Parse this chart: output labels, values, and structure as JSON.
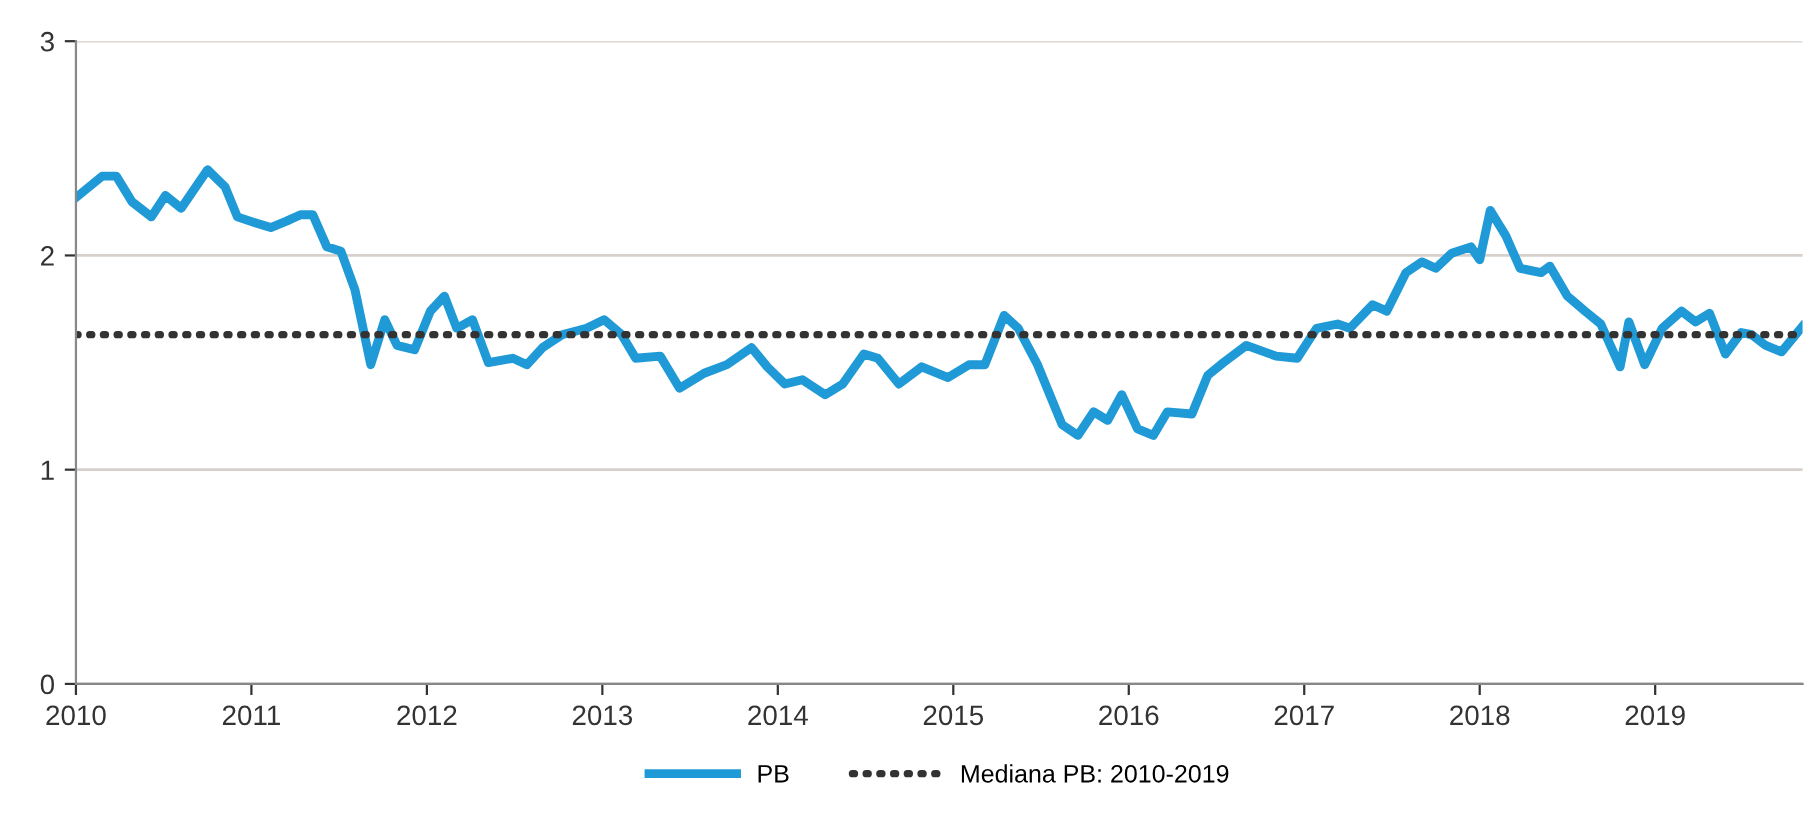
{
  "chart_data": {
    "type": "line",
    "xlim": [
      2010,
      2019.84
    ],
    "xticks": [
      2010,
      2011,
      2012,
      2013,
      2014,
      2015,
      2016,
      2017,
      2018,
      2019
    ],
    "ylim": [
      0,
      3
    ],
    "yticks": [
      0,
      1,
      2,
      3
    ],
    "grid": "y",
    "legend": "bottom",
    "series": [
      {
        "name": "PB",
        "color": "#1f9ad6",
        "line_style": "solid",
        "x": [
          2010.0,
          2010.15,
          2010.23,
          2010.32,
          2010.43,
          2010.51,
          2010.6,
          2010.75,
          2010.85,
          2010.92,
          2011.03,
          2011.11,
          2011.2,
          2011.28,
          2011.35,
          2011.43,
          2011.51,
          2011.59,
          2011.68,
          2011.76,
          2011.83,
          2011.93,
          2012.02,
          2012.1,
          2012.17,
          2012.26,
          2012.35,
          2012.49,
          2012.57,
          2012.66,
          2012.77,
          2012.91,
          2013.01,
          2013.11,
          2013.19,
          2013.33,
          2013.44,
          2013.58,
          2013.71,
          2013.85,
          2013.94,
          2014.04,
          2014.14,
          2014.27,
          2014.37,
          2014.49,
          2014.57,
          2014.69,
          2014.82,
          2014.97,
          2015.09,
          2015.18,
          2015.29,
          2015.37,
          2015.48,
          2015.62,
          2015.71,
          2015.8,
          2015.88,
          2015.96,
          2016.05,
          2016.14,
          2016.22,
          2016.36,
          2016.45,
          2016.54,
          2016.67,
          2016.84,
          2016.96,
          2017.07,
          2017.19,
          2017.26,
          2017.39,
          2017.47,
          2017.58,
          2017.67,
          2017.75,
          2017.84,
          2017.95,
          2018.0,
          2018.06,
          2018.15,
          2018.23,
          2018.35,
          2018.4,
          2018.5,
          2018.6,
          2018.69,
          2018.8,
          2018.85,
          2018.94,
          2019.04,
          2019.15,
          2019.23,
          2019.31,
          2019.4,
          2019.49,
          2019.55,
          2019.63,
          2019.72,
          2019.84
        ],
        "values": [
          2.27,
          2.37,
          2.37,
          2.25,
          2.18,
          2.28,
          2.22,
          2.4,
          2.32,
          2.18,
          2.15,
          2.13,
          2.16,
          2.19,
          2.19,
          2.04,
          2.02,
          1.84,
          1.49,
          1.7,
          1.58,
          1.56,
          1.74,
          1.81,
          1.66,
          1.7,
          1.5,
          1.52,
          1.49,
          1.57,
          1.63,
          1.66,
          1.7,
          1.63,
          1.52,
          1.53,
          1.38,
          1.45,
          1.49,
          1.57,
          1.48,
          1.4,
          1.42,
          1.35,
          1.4,
          1.54,
          1.52,
          1.4,
          1.48,
          1.43,
          1.49,
          1.49,
          1.72,
          1.66,
          1.49,
          1.21,
          1.16,
          1.27,
          1.23,
          1.35,
          1.19,
          1.16,
          1.27,
          1.26,
          1.44,
          1.5,
          1.58,
          1.53,
          1.52,
          1.66,
          1.68,
          1.66,
          1.77,
          1.74,
          1.92,
          1.97,
          1.94,
          2.01,
          2.04,
          1.98,
          2.21,
          2.09,
          1.94,
          1.92,
          1.95,
          1.81,
          1.74,
          1.68,
          1.48,
          1.69,
          1.49,
          1.66,
          1.74,
          1.69,
          1.73,
          1.54,
          1.64,
          1.63,
          1.58,
          1.55,
          1.67
        ]
      },
      {
        "name": "Mediana PB: 2010-2019",
        "color": "#333333",
        "line_style": "dotted",
        "x": [
          2010,
          2019.84
        ],
        "values": [
          1.63,
          1.63
        ]
      }
    ]
  }
}
